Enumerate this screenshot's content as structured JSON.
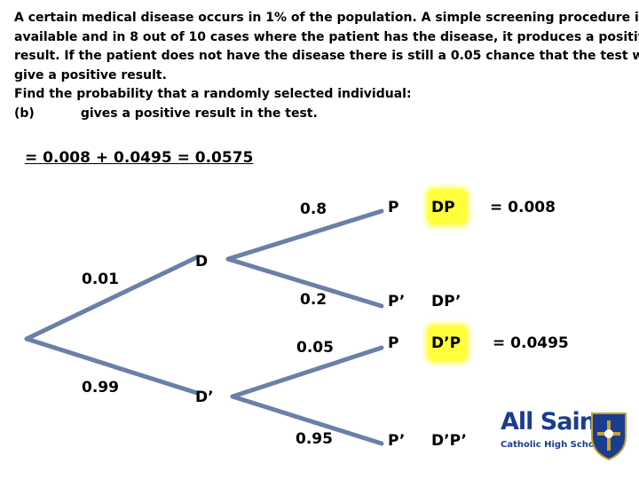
{
  "question": {
    "lines": [
      "A certain medical disease occurs in 1% of the population. A simple screening procedure is",
      "available and in 8 out of 10 cases where the patient has the disease, it produces a positive",
      "result. If the patient does not have the disease there is still a 0.05 chance that the test will",
      "give a positive result.",
      "Find the probability that a randomly selected individual:"
    ],
    "part": "(b)",
    "part_text": "gives a positive result in the test."
  },
  "answer": {
    "prefix": "= ",
    "term1": "0.008",
    "plus": " + ",
    "term2": "0.0495",
    "equals": " = ",
    "result": "0.0575"
  },
  "tree": {
    "first_level": [
      {
        "prob": "0.01",
        "event": "D"
      },
      {
        "prob": "0.99",
        "event": "D’"
      }
    ],
    "second_level": [
      {
        "prob": "0.8",
        "event": "P",
        "outcome": "DP",
        "highlighted": true,
        "result": "= 0.008"
      },
      {
        "prob": "0.2",
        "event": "P’",
        "outcome": "DP’",
        "highlighted": false,
        "result": ""
      },
      {
        "prob": "0.05",
        "event": "P",
        "outcome": "D’P",
        "highlighted": true,
        "result": "= 0.0495"
      },
      {
        "prob": "0.95",
        "event": "P’",
        "outcome": "D’P’",
        "highlighted": false,
        "result": ""
      }
    ],
    "line_color": "#6b7fa8",
    "highlight_color": "#ffff3c"
  },
  "logo": {
    "title": "All Saints",
    "subtitle": "Catholic High School",
    "color": "#1b3d8f"
  }
}
